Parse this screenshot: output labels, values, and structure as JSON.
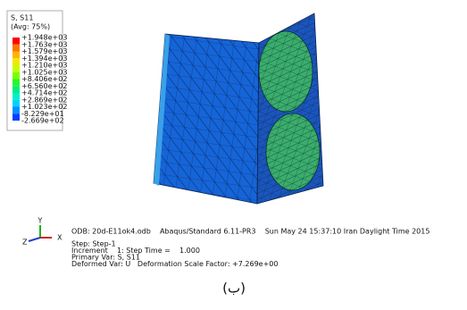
{
  "legend": {
    "title": "S, S11",
    "subtitle": "(Avg: 75%)",
    "labels": [
      "+1.948e+03",
      "+1.763e+03",
      "+1.579e+03",
      "+1.394e+03",
      "+1.210e+03",
      "+1.025e+03",
      "+8.406e+02",
      "+6.560e+02",
      "+4.714e+02",
      "+2.869e+02",
      "+1.023e+02",
      "-8.229e+01",
      "-2.669e+02"
    ],
    "colors": [
      "#ff0000",
      "#ff7400",
      "#ffb400",
      "#f2e800",
      "#c2ff00",
      "#7aff00",
      "#2cf52c",
      "#00f07a",
      "#00f0c8",
      "#00d2ff",
      "#0090ff",
      "#0040ff"
    ]
  },
  "triad": {
    "y": "Y",
    "x": "X",
    "z": "Z"
  },
  "info": {
    "header": "ODB: 20d-E11ok4.odb    Abaqus/Standard 6.11-PR3    Sun May 24 15:37:10 Iran Daylight Time 2015",
    "lines": [
      "Step: Step-1",
      "Increment    1: Step Time =    1.000",
      "Primary Var: S, S11",
      "Deformed Var: U   Deformation Scale Factor: +7.269e+00"
    ]
  },
  "caption": "(ب)"
}
